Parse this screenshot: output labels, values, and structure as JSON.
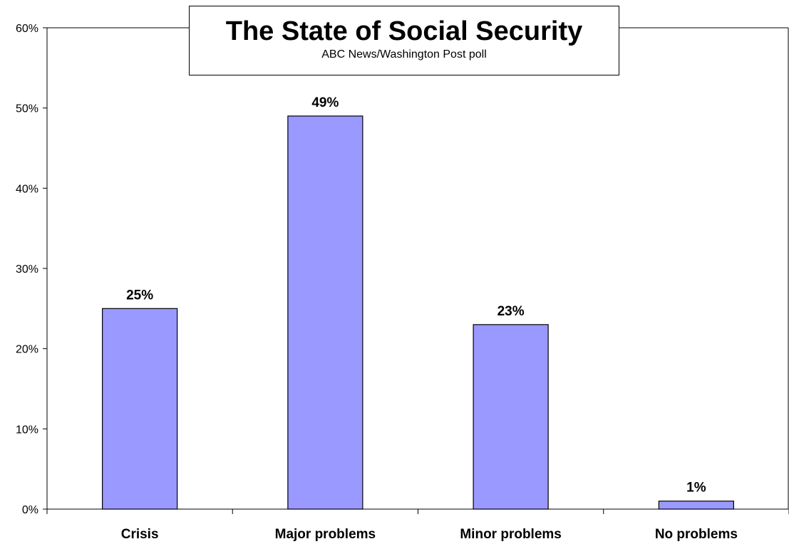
{
  "chart_data": {
    "type": "bar",
    "title": "The State of Social Security",
    "subtitle": "ABC News/Washington Post poll",
    "categories": [
      "Crisis",
      "Major problems",
      "Minor problems",
      "No problems"
    ],
    "values": [
      25,
      49,
      23,
      1
    ],
    "data_labels": [
      "25%",
      "49%",
      "23%",
      "1%"
    ],
    "ylim": [
      0,
      60
    ],
    "y_ticks": [
      0,
      10,
      20,
      30,
      40,
      50,
      60
    ],
    "y_tick_labels": [
      "0%",
      "10%",
      "20%",
      "30%",
      "40%",
      "50%",
      "60%"
    ],
    "grid": false,
    "legend": "none",
    "bar_color": "#9999ff",
    "bar_edge_color": "#000000"
  }
}
